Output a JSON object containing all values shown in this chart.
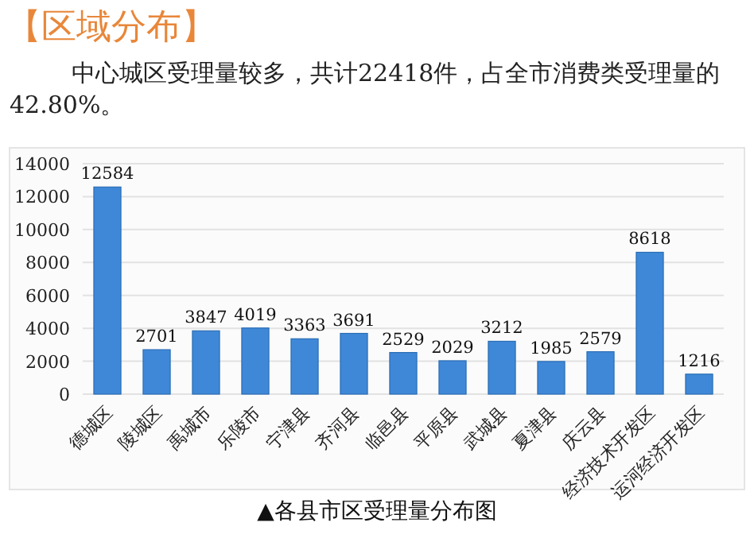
{
  "chart_data": {
    "type": "bar",
    "title": "【区域分布】",
    "subtitle": "中心城区受理量较多，共计22418件，占全市消费类受理量的42.80%。",
    "categories": [
      "德城区",
      "陵城区",
      "禹城市",
      "乐陵市",
      "宁津县",
      "齐河县",
      "临邑县",
      "平原县",
      "武城县",
      "夏津县",
      "庆云县",
      "经济技术开发区",
      "运河经济开发区"
    ],
    "values": [
      12584,
      2701,
      3847,
      4019,
      3363,
      3691,
      2529,
      2029,
      3212,
      1985,
      2579,
      8618,
      1216
    ],
    "color": "#3f88d8",
    "ylim": [
      0,
      14000
    ],
    "yticks": [
      0,
      2000,
      4000,
      6000,
      8000,
      10000,
      12000,
      14000
    ],
    "grid": "y",
    "data_labels": true,
    "annotations": [
      "▲各县市区受理量分布图"
    ]
  }
}
